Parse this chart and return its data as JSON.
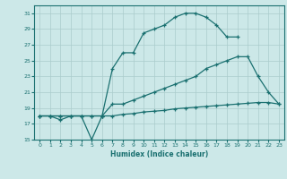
{
  "xlabel": "Humidex (Indice chaleur)",
  "bg_color": "#cce8e8",
  "line_color": "#1a7070",
  "grid_color": "#aacccc",
  "xlim": [
    -0.5,
    23.5
  ],
  "ylim": [
    15,
    32
  ],
  "xticks": [
    0,
    1,
    2,
    3,
    4,
    5,
    6,
    7,
    8,
    9,
    10,
    11,
    12,
    13,
    14,
    15,
    16,
    17,
    18,
    19,
    20,
    21,
    22,
    23
  ],
  "yticks": [
    15,
    17,
    19,
    21,
    23,
    25,
    27,
    29,
    31
  ],
  "line1_x": [
    0,
    1,
    2,
    3,
    4,
    5,
    6,
    7,
    8,
    9,
    10,
    11,
    12,
    13,
    14,
    15,
    16,
    17,
    18,
    19
  ],
  "line1_y": [
    18,
    18,
    17.5,
    18,
    18,
    15,
    18,
    24,
    26,
    26,
    28.5,
    29,
    29.5,
    30.5,
    31,
    31,
    30.5,
    29.5,
    28,
    28
  ],
  "line2_x": [
    0,
    1,
    2,
    3,
    4,
    5,
    6,
    7,
    8,
    9,
    10,
    11,
    12,
    13,
    14,
    15,
    16,
    17,
    18,
    19,
    20,
    21,
    22,
    23
  ],
  "line2_y": [
    18,
    18,
    18,
    18,
    18,
    18,
    18,
    19.5,
    19.5,
    20,
    20.5,
    21,
    21.5,
    22,
    22.5,
    23,
    24,
    24.5,
    25,
    25.5,
    25.5,
    23,
    21,
    19.5
  ],
  "line3_x": [
    0,
    1,
    2,
    3,
    4,
    5,
    6,
    7,
    8,
    9,
    10,
    11,
    12,
    13,
    14,
    15,
    16,
    17,
    18,
    19,
    20,
    21,
    22,
    23
  ],
  "line3_y": [
    18,
    18,
    18,
    18,
    18,
    18,
    18,
    18,
    18.2,
    18.3,
    18.5,
    18.6,
    18.7,
    18.9,
    19.0,
    19.1,
    19.2,
    19.3,
    19.4,
    19.5,
    19.6,
    19.7,
    19.7,
    19.5
  ]
}
